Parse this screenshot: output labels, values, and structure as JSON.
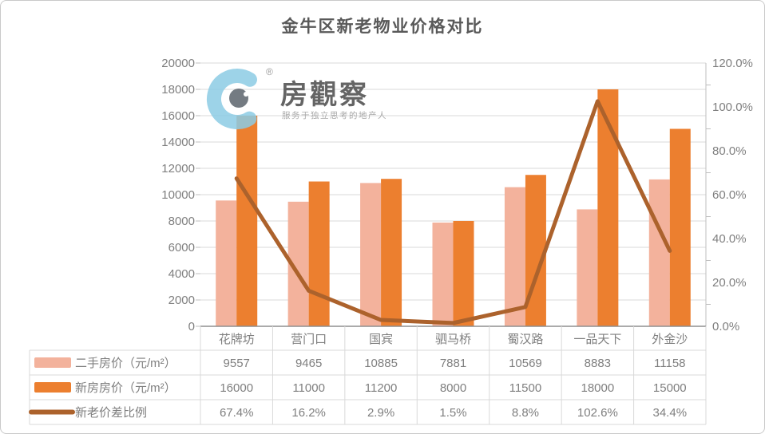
{
  "title": "金牛区新老物业价格对比",
  "watermark": {
    "brand": "房觀察",
    "registered": "®",
    "tagline": "服务于独立思考的地产人"
  },
  "chart_data": {
    "type": "combo-bar-line",
    "title": "金牛区新老物业价格对比",
    "categories": [
      "花牌坊",
      "营门口",
      "国宾",
      "驷马桥",
      "蜀汉路",
      "一品天下",
      "外金沙"
    ],
    "series": [
      {
        "name": "二手房价（元/m²）",
        "type": "bar",
        "axis": "left",
        "color": "#F3B29C",
        "values": [
          9557,
          9465,
          10885,
          7881,
          10569,
          8883,
          11158
        ],
        "display": [
          "9557",
          "9465",
          "10885",
          "7881",
          "10569",
          "8883",
          "11158"
        ]
      },
      {
        "name": "新房房价（元/m²）",
        "type": "bar",
        "axis": "left",
        "color": "#EC7F2F",
        "values": [
          16000,
          11000,
          11200,
          8000,
          11500,
          18000,
          15000
        ],
        "display": [
          "16000",
          "11000",
          "11200",
          "8000",
          "11500",
          "18000",
          "15000"
        ]
      },
      {
        "name": "新老价差比例",
        "type": "line",
        "axis": "right",
        "color": "#AC622C",
        "values": [
          67.4,
          16.2,
          2.9,
          1.5,
          8.8,
          102.6,
          34.4
        ],
        "display": [
          "67.4%",
          "16.2%",
          "2.9%",
          "1.5%",
          "8.8%",
          "102.6%",
          "34.4%"
        ]
      }
    ],
    "left_axis": {
      "min": 0,
      "max": 20000,
      "step": 2000,
      "label_ticks": [
        "0",
        "2000",
        "4000",
        "6000",
        "8000",
        "10000",
        "12000",
        "14000",
        "16000",
        "18000",
        "20000"
      ]
    },
    "right_axis": {
      "min": 0,
      "max": 120,
      "step": 20,
      "minor_step": 10,
      "label_ticks": [
        "0.0%",
        "20.0%",
        "40.0%",
        "60.0%",
        "80.0%",
        "100.0%",
        "120.0%"
      ]
    },
    "grid": true,
    "legend_position": "data-table-left",
    "colors": {
      "grid": "#D9D9D9",
      "table_border": "#D9D9D9",
      "axis_line": "#BFBFBF",
      "baseline": "#8F8F8F",
      "axis_text": "#7F7F7F",
      "title_text": "#595959"
    }
  }
}
